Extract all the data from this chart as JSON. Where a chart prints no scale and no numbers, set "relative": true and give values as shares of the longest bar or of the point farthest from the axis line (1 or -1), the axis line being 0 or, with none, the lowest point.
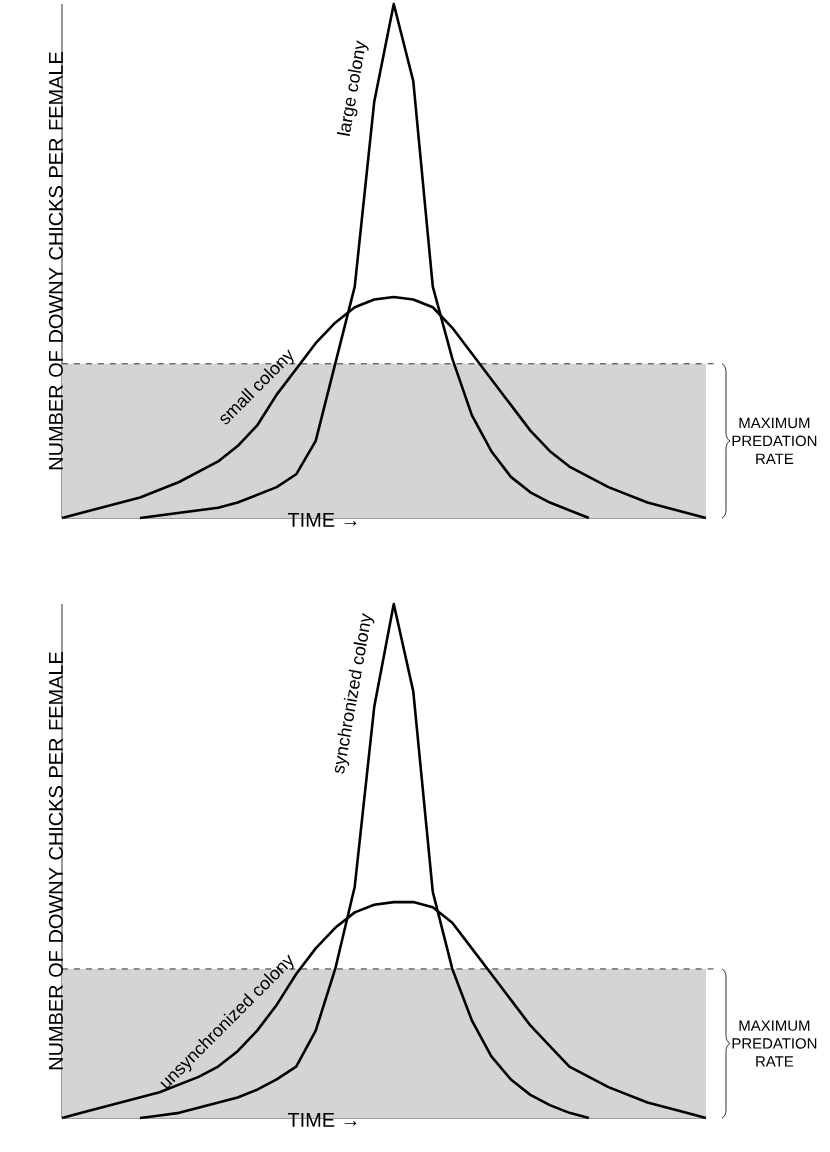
{
  "chart_data": [
    {
      "type": "line",
      "relative": true,
      "xlabel": "TIME →",
      "ylabel": "NUMBER OF DOWNY CHICKS PER FEMALE",
      "categories": [
        null,
        null,
        null,
        null,
        null,
        null,
        null,
        null,
        null,
        null,
        null,
        null,
        null,
        null,
        null,
        null,
        null,
        null,
        null,
        null,
        null,
        null,
        null,
        null,
        null,
        null,
        null,
        null,
        null,
        null,
        null,
        null,
        null,
        null
      ],
      "series": [
        {
          "name": "large colony",
          "color": "#000000",
          "values": [
            null,
            null,
            null,
            null,
            0.0,
            0.005,
            0.01,
            0.015,
            0.02,
            0.03,
            0.045,
            0.06,
            0.085,
            0.15,
            0.3,
            0.45,
            0.81,
            1.0,
            0.85,
            0.45,
            0.31,
            0.2,
            0.13,
            0.08,
            0.05,
            0.03,
            0.015,
            0.0,
            null,
            null,
            null,
            null,
            null,
            null
          ]
        },
        {
          "name": "small colony",
          "color": "#000000",
          "values": [
            0,
            0.01,
            0.02,
            0.03,
            0.04,
            0.055,
            0.07,
            0.09,
            0.11,
            0.14,
            0.18,
            0.24,
            0.29,
            0.34,
            0.38,
            0.41,
            0.425,
            0.43,
            0.425,
            0.41,
            0.37,
            0.32,
            0.27,
            0.22,
            0.17,
            0.13,
            0.1,
            0.08,
            0.06,
            0.045,
            0.03,
            0.02,
            0.01,
            0
          ]
        }
      ],
      "bands": [
        {
          "axis": "y",
          "from": 0,
          "to": 0.3,
          "label": "MAXIMUM PREDATION RATE",
          "color": "#d4d4d4"
        }
      ],
      "ref_lines": [
        {
          "axis": "y",
          "value": 0.3,
          "line_style": "dashed",
          "color": "#000000"
        }
      ],
      "line_style": "solid"
    },
    {
      "type": "line",
      "relative": true,
      "xlabel": "TIME →",
      "ylabel": "NUMBER OF DOWNY CHICKS PER FEMALE",
      "categories": [
        null,
        null,
        null,
        null,
        null,
        null,
        null,
        null,
        null,
        null,
        null,
        null,
        null,
        null,
        null,
        null,
        null,
        null,
        null,
        null,
        null,
        null,
        null,
        null,
        null,
        null,
        null,
        null,
        null,
        null,
        null,
        null,
        null,
        null
      ],
      "series": [
        {
          "name": "synchronized colony",
          "color": "#000000",
          "values": [
            null,
            null,
            null,
            null,
            0.0,
            0.005,
            0.01,
            0.02,
            0.03,
            0.04,
            0.055,
            0.075,
            0.1,
            0.17,
            0.29,
            0.45,
            0.8,
            1.0,
            0.83,
            0.44,
            0.29,
            0.19,
            0.12,
            0.075,
            0.045,
            0.025,
            0.01,
            0.0,
            null,
            null,
            null,
            null,
            null,
            null
          ]
        },
        {
          "name": "unsynchronized colony",
          "color": "#000000",
          "values": [
            0,
            0.01,
            0.02,
            0.03,
            0.04,
            0.05,
            0.065,
            0.08,
            0.1,
            0.13,
            0.17,
            0.22,
            0.28,
            0.33,
            0.37,
            0.4,
            0.415,
            0.42,
            0.42,
            0.41,
            0.38,
            0.33,
            0.28,
            0.23,
            0.18,
            0.14,
            0.1,
            0.08,
            0.06,
            0.045,
            0.03,
            0.02,
            0.01,
            0
          ]
        }
      ],
      "bands": [
        {
          "axis": "y",
          "from": 0,
          "to": 0.29,
          "label": "MAXIMUM PREDATION RATE",
          "color": "#d4d4d4"
        }
      ],
      "ref_lines": [
        {
          "axis": "y",
          "value": 0.29,
          "line_style": "dashed",
          "color": "#000000"
        }
      ],
      "line_style": "solid"
    }
  ]
}
